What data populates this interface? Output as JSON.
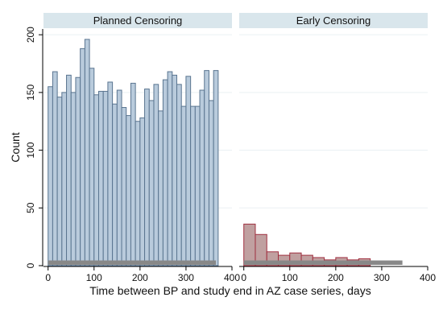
{
  "chart_data": {
    "type": "bar",
    "xlabel": "Time between BP and study end in AZ case series, days",
    "ylabel": "Count",
    "xlim": [
      -10,
      400
    ],
    "ylim": [
      0,
      205
    ],
    "x_ticks": [
      0,
      100,
      200,
      300,
      400
    ],
    "y_ticks": [
      0,
      50,
      100,
      150,
      200
    ],
    "grid": true,
    "colors": {
      "planned_fill": "#b9cbdc",
      "planned_stroke": "#5a7590",
      "early_fill": "#c0a0a0",
      "early_stroke": "#a03040",
      "baseband": "#888888"
    },
    "panels": [
      {
        "title": "Planned Censoring",
        "bin_width": 10,
        "bin_start": 0,
        "values": [
          155,
          168,
          146,
          150,
          165,
          150,
          163,
          188,
          196,
          171,
          148,
          151,
          151,
          159,
          140,
          152,
          137,
          130,
          158,
          125,
          128,
          153,
          143,
          157,
          134,
          161,
          168,
          165,
          157,
          138,
          164,
          138,
          138,
          152,
          169,
          143,
          169
        ],
        "baseband_range": [
          0,
          365
        ]
      },
      {
        "title": "Early Censoring",
        "bin_width": 25,
        "bin_start": 0,
        "values": [
          36,
          27,
          12,
          9,
          11,
          9,
          7,
          5,
          7,
          5,
          6
        ],
        "baseband_range": [
          0,
          345
        ]
      }
    ]
  }
}
